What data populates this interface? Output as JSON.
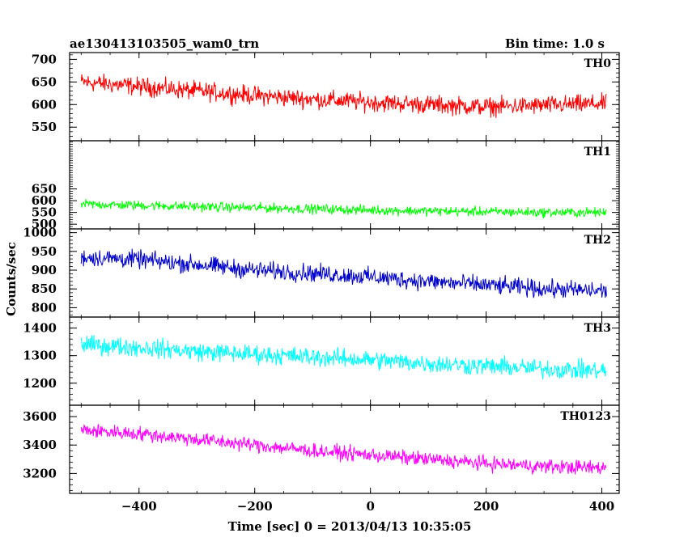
{
  "header": {
    "left": "ae130413103505_wam0_trn",
    "right": "Bin time: 1.0 s"
  },
  "chart_data": {
    "type": "line",
    "title": "ae130413103505_wam0_trn",
    "subtitle": "Bin time: 1.0 s",
    "xlabel": "Time [sec] 0 = 2013/04/13 10:35:05",
    "ylabel": "Counts/sec",
    "xlim": [
      -520,
      430
    ],
    "xticks": [
      -400,
      -200,
      0,
      200,
      400
    ],
    "grid": false,
    "series": [
      {
        "name": "TH0",
        "color": "#ff0000",
        "ylim": [
          520,
          715
        ],
        "yticks": [
          550,
          600,
          650,
          700
        ],
        "x": [
          -500,
          -400,
          -300,
          -200,
          -100,
          0,
          100,
          200,
          300,
          400
        ],
        "values": [
          650,
          640,
          630,
          620,
          612,
          605,
          600,
          595,
          598,
          602
        ],
        "noise": 30
      },
      {
        "name": "TH1",
        "color": "#00ff00",
        "ylim": [
          480,
          855
        ],
        "yticks": [
          500,
          550,
          600,
          650
        ],
        "x": [
          -500,
          -400,
          -300,
          -200,
          -100,
          0,
          100,
          200,
          300,
          400
        ],
        "values": [
          585,
          580,
          575,
          570,
          565,
          560,
          556,
          553,
          550,
          550
        ],
        "noise": 30
      },
      {
        "name": "TH2",
        "color": "#0000cc",
        "ylim": [
          775,
          1010
        ],
        "yticks": [
          800,
          850,
          900,
          950,
          1000
        ],
        "x": [
          -500,
          -400,
          -300,
          -200,
          -100,
          0,
          100,
          200,
          300,
          400
        ],
        "values": [
          935,
          928,
          915,
          900,
          892,
          882,
          870,
          860,
          850,
          845
        ],
        "noise": 35
      },
      {
        "name": "TH3",
        "color": "#00ffff",
        "ylim": [
          1120,
          1440
        ],
        "yticks": [
          1200,
          1300,
          1400
        ],
        "x": [
          -500,
          -400,
          -300,
          -200,
          -100,
          0,
          100,
          200,
          300,
          400
        ],
        "values": [
          1340,
          1330,
          1315,
          1305,
          1295,
          1285,
          1272,
          1262,
          1252,
          1245
        ],
        "noise": 50
      },
      {
        "name": "TH0123",
        "color": "#ff00ff",
        "ylim": [
          3060,
          3680
        ],
        "yticks": [
          3200,
          3400,
          3600
        ],
        "x": [
          -500,
          -400,
          -300,
          -200,
          -100,
          0,
          100,
          200,
          300,
          400
        ],
        "values": [
          3505,
          3480,
          3440,
          3400,
          3360,
          3330,
          3300,
          3270,
          3250,
          3240
        ],
        "noise": 75
      }
    ]
  }
}
